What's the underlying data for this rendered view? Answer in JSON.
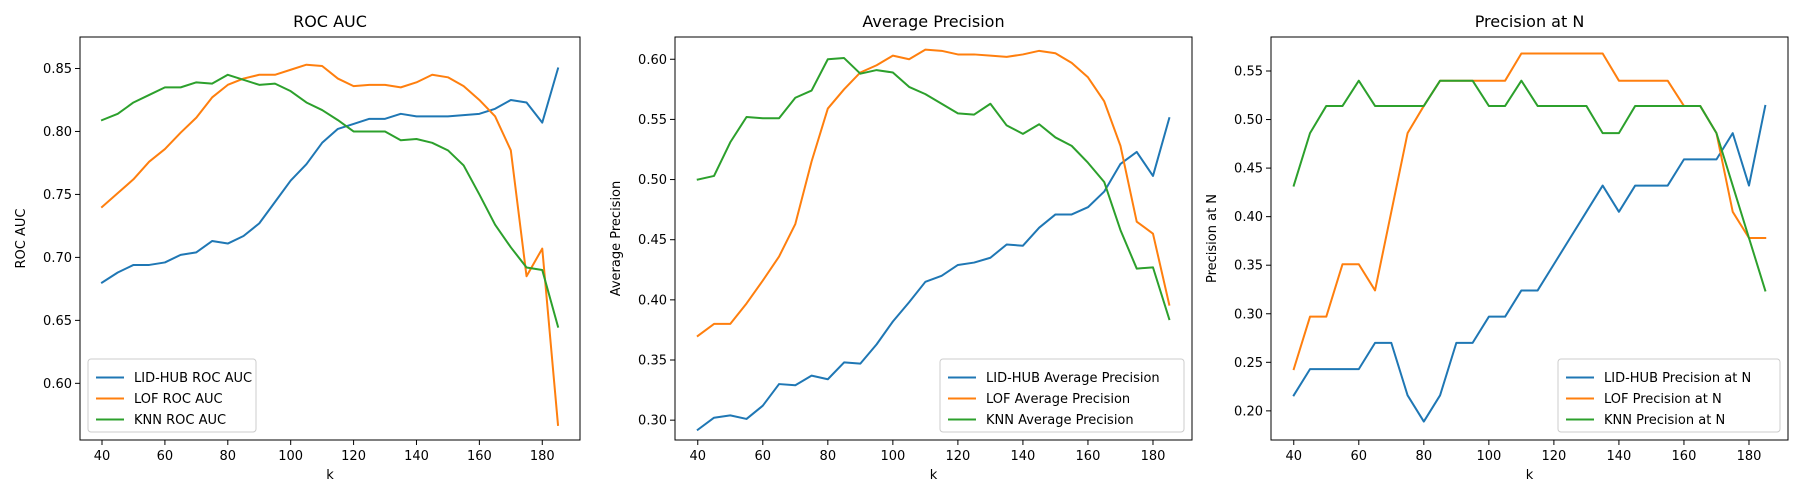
{
  "chart_data": [
    {
      "type": "line",
      "title": "ROC AUC",
      "xlabel": "k",
      "ylabel": "ROC AUC",
      "xlim": [
        33,
        192
      ],
      "ylim": [
        0.555,
        0.875
      ],
      "xticks": [
        40,
        60,
        80,
        100,
        120,
        140,
        160,
        180
      ],
      "yticks": [
        0.6,
        0.65,
        0.7,
        0.75,
        0.8,
        0.85
      ],
      "ytick_decimals": 2,
      "legend_position": "lower-left",
      "x": [
        40,
        45,
        50,
        55,
        60,
        65,
        70,
        75,
        80,
        85,
        90,
        95,
        100,
        105,
        110,
        115,
        120,
        125,
        130,
        135,
        140,
        145,
        150,
        155,
        160,
        165,
        170,
        175,
        180,
        185
      ],
      "series": [
        {
          "name": "LID-HUB ROC AUC",
          "color": "#1f77b4",
          "values": [
            0.68,
            0.688,
            0.694,
            0.694,
            0.696,
            0.702,
            0.704,
            0.713,
            0.711,
            0.717,
            0.727,
            0.744,
            0.761,
            0.774,
            0.791,
            0.802,
            0.806,
            0.81,
            0.81,
            0.814,
            0.812,
            0.812,
            0.812,
            0.813,
            0.814,
            0.818,
            0.825,
            0.823,
            0.807,
            0.85
          ]
        },
        {
          "name": "LOF ROC AUC",
          "color": "#ff7f0e",
          "values": [
            0.74,
            0.751,
            0.762,
            0.776,
            0.786,
            0.799,
            0.811,
            0.827,
            0.837,
            0.842,
            0.845,
            0.845,
            0.849,
            0.853,
            0.852,
            0.842,
            0.836,
            0.837,
            0.837,
            0.835,
            0.839,
            0.845,
            0.843,
            0.836,
            0.825,
            0.812,
            0.785,
            0.685,
            0.707,
            0.567
          ]
        },
        {
          "name": "KNN ROC AUC",
          "color": "#2ca02c",
          "values": [
            0.809,
            0.814,
            0.823,
            0.829,
            0.835,
            0.835,
            0.839,
            0.838,
            0.845,
            0.841,
            0.837,
            0.838,
            0.832,
            0.823,
            0.817,
            0.809,
            0.8,
            0.8,
            0.8,
            0.793,
            0.794,
            0.791,
            0.785,
            0.773,
            0.75,
            0.726,
            0.708,
            0.692,
            0.69,
            0.645
          ]
        }
      ]
    },
    {
      "type": "line",
      "title": "Average Precision",
      "xlabel": "k",
      "ylabel": "Average Precision",
      "xlim": [
        33,
        192
      ],
      "ylim": [
        0.2835,
        0.6185
      ],
      "xticks": [
        40,
        60,
        80,
        100,
        120,
        140,
        160,
        180
      ],
      "yticks": [
        0.3,
        0.35,
        0.4,
        0.45,
        0.5,
        0.55,
        0.6
      ],
      "ytick_decimals": 2,
      "legend_position": "lower-right",
      "x": [
        40,
        45,
        50,
        55,
        60,
        65,
        70,
        75,
        80,
        85,
        90,
        95,
        100,
        105,
        110,
        115,
        120,
        125,
        130,
        135,
        140,
        145,
        150,
        155,
        160,
        165,
        170,
        175,
        180,
        185
      ],
      "series": [
        {
          "name": "LID-HUB Average Precision",
          "color": "#1f77b4",
          "values": [
            0.292,
            0.302,
            0.304,
            0.301,
            0.312,
            0.33,
            0.329,
            0.337,
            0.334,
            0.348,
            0.347,
            0.363,
            0.382,
            0.398,
            0.415,
            0.42,
            0.429,
            0.431,
            0.435,
            0.446,
            0.445,
            0.46,
            0.471,
            0.471,
            0.477,
            0.49,
            0.513,
            0.523,
            0.503,
            0.551
          ]
        },
        {
          "name": "LOF Average Precision",
          "color": "#ff7f0e",
          "values": [
            0.37,
            0.38,
            0.38,
            0.397,
            0.416,
            0.436,
            0.463,
            0.515,
            0.559,
            0.575,
            0.589,
            0.595,
            0.603,
            0.6,
            0.608,
            0.607,
            0.604,
            0.604,
            0.603,
            0.602,
            0.604,
            0.607,
            0.605,
            0.597,
            0.585,
            0.565,
            0.528,
            0.465,
            0.455,
            0.396
          ]
        },
        {
          "name": "KNN Average Precision",
          "color": "#2ca02c",
          "values": [
            0.5,
            0.503,
            0.531,
            0.552,
            0.551,
            0.551,
            0.568,
            0.574,
            0.6,
            0.601,
            0.588,
            0.591,
            0.589,
            0.577,
            0.571,
            0.563,
            0.555,
            0.554,
            0.563,
            0.545,
            0.538,
            0.546,
            0.535,
            0.528,
            0.514,
            0.498,
            0.458,
            0.426,
            0.427,
            0.384
          ]
        }
      ]
    },
    {
      "type": "line",
      "title": "Precision at N",
      "xlabel": "k",
      "ylabel": "Precision at N",
      "xlim": [
        33,
        192
      ],
      "ylim": [
        0.17,
        0.585
      ],
      "xticks": [
        40,
        60,
        80,
        100,
        120,
        140,
        160,
        180
      ],
      "yticks": [
        0.2,
        0.25,
        0.3,
        0.35,
        0.4,
        0.45,
        0.5,
        0.55
      ],
      "ytick_decimals": 2,
      "legend_position": "lower-right",
      "x": [
        40,
        45,
        50,
        55,
        60,
        65,
        70,
        75,
        80,
        85,
        90,
        95,
        100,
        105,
        110,
        115,
        120,
        125,
        130,
        135,
        140,
        145,
        150,
        155,
        160,
        165,
        170,
        175,
        180,
        185
      ],
      "series": [
        {
          "name": "LID-HUB Precision at N",
          "color": "#1f77b4",
          "values": [
            0.216,
            0.243,
            0.243,
            0.243,
            0.243,
            0.27,
            0.27,
            0.216,
            0.189,
            0.216,
            0.27,
            0.27,
            0.297,
            0.297,
            0.324,
            0.324,
            0.351,
            0.378,
            0.405,
            0.432,
            0.405,
            0.432,
            0.432,
            0.432,
            0.459,
            0.459,
            0.459,
            0.486,
            0.432,
            0.514
          ]
        },
        {
          "name": "LOF Precision at N",
          "color": "#ff7f0e",
          "values": [
            0.243,
            0.297,
            0.297,
            0.351,
            0.351,
            0.324,
            0.405,
            0.486,
            0.514,
            0.54,
            0.54,
            0.54,
            0.54,
            0.54,
            0.568,
            0.568,
            0.568,
            0.568,
            0.568,
            0.568,
            0.54,
            0.54,
            0.54,
            0.54,
            0.514,
            0.514,
            0.486,
            0.405,
            0.378,
            0.378
          ]
        },
        {
          "name": "KNN Precision at N",
          "color": "#2ca02c",
          "values": [
            0.432,
            0.486,
            0.514,
            0.514,
            0.54,
            0.514,
            0.514,
            0.514,
            0.514,
            0.54,
            0.54,
            0.54,
            0.514,
            0.514,
            0.54,
            0.514,
            0.514,
            0.514,
            0.514,
            0.486,
            0.486,
            0.514,
            0.514,
            0.514,
            0.514,
            0.514,
            0.486,
            0.432,
            0.378,
            0.324
          ]
        }
      ]
    }
  ]
}
